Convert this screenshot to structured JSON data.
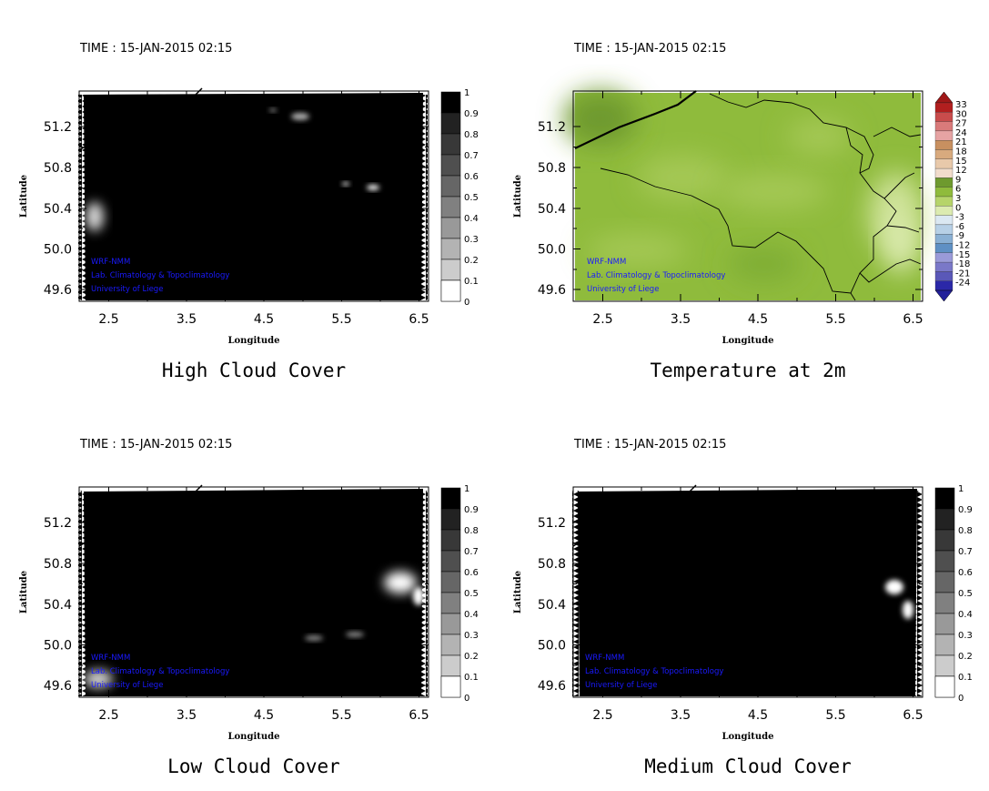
{
  "panels": [
    {
      "key": "high",
      "time_label": "TIME : 15-JAN-2015 02:15",
      "title": "High Cloud Cover",
      "xlabel": "Longitude",
      "ylabel": "Latitude",
      "xticks": [
        "2.5",
        "3.5",
        "4.5",
        "5.5",
        "6.5"
      ],
      "yticks": [
        "51.2",
        "50.8",
        "50.4",
        "50.0",
        "49.6"
      ],
      "colorbar_labels": [
        "1",
        "0.9",
        "0.8",
        "0.7",
        "0.6",
        "0.5",
        "0.4",
        "0.3",
        "0.2",
        "0.1",
        "0"
      ],
      "credits": [
        "WRF-NMM",
        "Lab. Climatology & Topoclimatology",
        "University of Liege"
      ]
    },
    {
      "key": "temp",
      "time_label": "TIME : 15-JAN-2015 02:15",
      "title": "Temperature at 2m",
      "xlabel": "Longitude",
      "ylabel": "Latitude",
      "xticks": [
        "2.5",
        "3.5",
        "4.5",
        "5.5",
        "6.5"
      ],
      "yticks": [
        "51.2",
        "50.8",
        "50.4",
        "50.0",
        "49.6"
      ],
      "colorbar_labels": [
        "33",
        "30",
        "27",
        "24",
        "21",
        "18",
        "15",
        "12",
        "9",
        "6",
        "3",
        "0",
        "-3",
        "-6",
        "-9",
        "-12",
        "-15",
        "-18",
        "-21",
        "-24"
      ],
      "credits": [
        "WRF-NMM",
        "Lab. Climatology & Topoclimatology",
        "University of Liege"
      ]
    },
    {
      "key": "low",
      "time_label": "TIME : 15-JAN-2015 02:15",
      "title": "Low Cloud Cover",
      "xlabel": "Longitude",
      "ylabel": "Latitude",
      "xticks": [
        "2.5",
        "3.5",
        "4.5",
        "5.5",
        "6.5"
      ],
      "yticks": [
        "51.2",
        "50.8",
        "50.4",
        "50.0",
        "49.6"
      ],
      "colorbar_labels": [
        "1",
        "0.9",
        "0.8",
        "0.7",
        "0.6",
        "0.5",
        "0.4",
        "0.3",
        "0.2",
        "0.1",
        "0"
      ],
      "credits": [
        "WRF-NMM",
        "Lab. Climatology & Topoclimatology",
        "University of Liege"
      ]
    },
    {
      "key": "medium",
      "time_label": "TIME : 15-JAN-2015 02:15",
      "title": "Medium Cloud Cover",
      "xlabel": "Longitude",
      "ylabel": "Latitude",
      "xticks": [
        "2.5",
        "3.5",
        "4.5",
        "5.5",
        "6.5"
      ],
      "yticks": [
        "51.2",
        "50.8",
        "50.4",
        "50.0",
        "49.6"
      ],
      "colorbar_labels": [
        "1",
        "0.9",
        "0.8",
        "0.7",
        "0.6",
        "0.5",
        "0.4",
        "0.3",
        "0.2",
        "0.1",
        "0"
      ],
      "credits": [
        "WRF-NMM",
        "Lab. Climatology & Topoclimatology",
        "University of Liege"
      ]
    }
  ],
  "colors": {
    "cloud_scale": [
      "#000000",
      "#222222",
      "#383838",
      "#4f4f4f",
      "#666666",
      "#808080",
      "#999999",
      "#b3b3b3",
      "#cccccc",
      "#e6e6e6"
    ],
    "temp_scale": [
      "#b21f1f",
      "#c94c4c",
      "#d97a7a",
      "#e6a3a3",
      "#c89060",
      "#d8aa7e",
      "#e8c9aa",
      "#f1dccb",
      "#6e9a2e",
      "#8fbb3c",
      "#b6d46a",
      "#dcebb0",
      "#dbe8f2",
      "#b7d0e6",
      "#8ab0d4",
      "#5f90c4",
      "#9a9ad8",
      "#7a78c8",
      "#5a58b8",
      "#2b28a8"
    ],
    "credit_text": "#1a1aff"
  }
}
